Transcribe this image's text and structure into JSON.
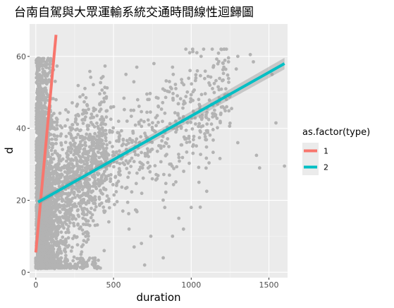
{
  "chart_data": {
    "type": "scatter",
    "title": "台南自駕與大眾運輸系統交通時間線性迴歸圖",
    "xlabel": "duration",
    "ylabel": "d",
    "xlim": [
      -40,
      1620
    ],
    "ylim": [
      -1.5,
      69
    ],
    "x_ticks": [
      0,
      500,
      1000,
      1500
    ],
    "x_tick_labels": [
      "0",
      "500",
      "1000",
      "1500"
    ],
    "y_ticks": [
      0,
      20,
      40,
      60
    ],
    "y_tick_labels": [
      "0",
      "20",
      "40",
      "60"
    ],
    "grid": true,
    "background": "#ebebeb",
    "point_color": "#b3b3b3",
    "legend": {
      "title": "as.factor(type)",
      "position": "right",
      "entries": [
        {
          "label": "1",
          "color": "#f8766d"
        },
        {
          "label": "2",
          "color": "#00bfc4"
        }
      ]
    },
    "series": [
      {
        "name": "1",
        "kind": "regression",
        "color": "#f8766d",
        "x": [
          0,
          130
        ],
        "y": [
          5.5,
          66
        ]
      },
      {
        "name": "2",
        "kind": "regression",
        "color": "#00bfc4",
        "x": [
          15,
          1600
        ],
        "y": [
          19.5,
          58
        ],
        "band": 0.8
      }
    ],
    "outlier_points": [
      {
        "x": 1600,
        "y": 29.5
      },
      {
        "x": 1545,
        "y": 41.5
      },
      {
        "x": 1420,
        "y": 32.5
      },
      {
        "x": 1440,
        "y": 29
      },
      {
        "x": 1520,
        "y": 55
      },
      {
        "x": 1300,
        "y": 60
      },
      {
        "x": 1290,
        "y": 56.5
      },
      {
        "x": 1240,
        "y": 58.5
      },
      {
        "x": 1380,
        "y": 60.5
      },
      {
        "x": 1400,
        "y": 58.5
      },
      {
        "x": 1210,
        "y": 57
      },
      {
        "x": 1180,
        "y": 48.5
      },
      {
        "x": 1250,
        "y": 49
      },
      {
        "x": 1300,
        "y": 36
      },
      {
        "x": 1260,
        "y": 45.5
      },
      {
        "x": 1120,
        "y": 52
      },
      {
        "x": 1080,
        "y": 62
      },
      {
        "x": 1030,
        "y": 54
      },
      {
        "x": 990,
        "y": 61
      },
      {
        "x": 960,
        "y": 47
      },
      {
        "x": 1010,
        "y": 35
      },
      {
        "x": 1050,
        "y": 25
      },
      {
        "x": 1100,
        "y": 22.5
      },
      {
        "x": 1000,
        "y": 18
      },
      {
        "x": 920,
        "y": 15
      },
      {
        "x": 880,
        "y": 10
      },
      {
        "x": 830,
        "y": 18
      },
      {
        "x": 950,
        "y": 12
      },
      {
        "x": 860,
        "y": 27
      },
      {
        "x": 900,
        "y": 42
      },
      {
        "x": 880,
        "y": 57
      },
      {
        "x": 860,
        "y": 53
      },
      {
        "x": 760,
        "y": 58
      },
      {
        "x": 720,
        "y": 48
      },
      {
        "x": 650,
        "y": 57
      },
      {
        "x": 630,
        "y": 45
      },
      {
        "x": 780,
        "y": 26
      },
      {
        "x": 740,
        "y": 10
      },
      {
        "x": 680,
        "y": 8
      },
      {
        "x": 600,
        "y": 12
      },
      {
        "x": 560,
        "y": 17
      },
      {
        "x": 540,
        "y": 38
      },
      {
        "x": 500,
        "y": 46
      },
      {
        "x": 580,
        "y": 55
      },
      {
        "x": 470,
        "y": 14
      },
      {
        "x": 440,
        "y": 6
      },
      {
        "x": 1060,
        "y": 39
      },
      {
        "x": 1150,
        "y": 44
      },
      {
        "x": 820,
        "y": 4
      },
      {
        "x": 700,
        "y": 2
      }
    ]
  }
}
